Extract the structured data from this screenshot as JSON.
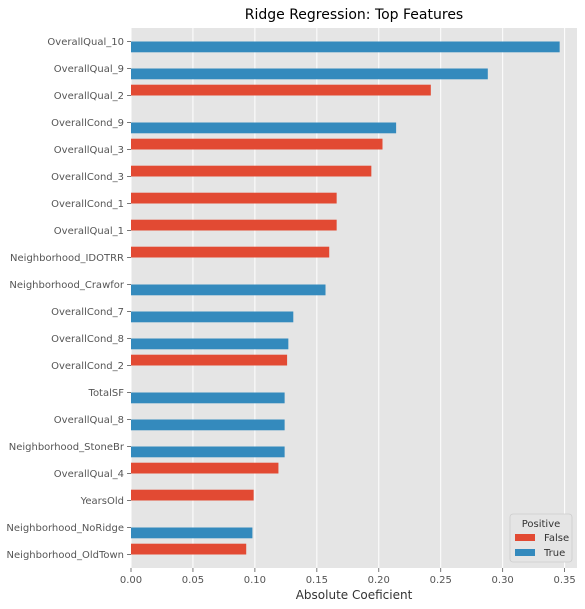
{
  "chart_data": {
    "type": "bar",
    "orientation": "horizontal",
    "title": "Ridge Regression: Top Features",
    "xlabel": "Absolute Coeficient",
    "ylabel": "",
    "xlim": [
      0,
      0.36
    ],
    "xticks": [
      0.0,
      0.05,
      0.1,
      0.15,
      0.2,
      0.25,
      0.3,
      0.35
    ],
    "xtick_labels": [
      "0.00",
      "0.05",
      "0.10",
      "0.15",
      "0.20",
      "0.25",
      "0.30",
      "0.35"
    ],
    "grid": true,
    "legend": {
      "title": "Positive",
      "placement": "bottom-right",
      "entries": [
        {
          "label": "False",
          "color": "#E24A33"
        },
        {
          "label": "True",
          "color": "#348ABD"
        }
      ]
    },
    "categories": [
      "OverallQual_10",
      "OverallQual_9",
      "OverallQual_2",
      "OverallCond_9",
      "OverallQual_3",
      "OverallCond_3",
      "OverallCond_1",
      "OverallQual_1",
      "Neighborhood_IDOTRR",
      "Neighborhood_Crawfor",
      "OverallCond_7",
      "OverallCond_8",
      "OverallCond_2",
      "TotalSF",
      "OverallQual_8",
      "Neighborhood_StoneBr",
      "OverallQual_4",
      "YearsOld",
      "Neighborhood_NoRidge",
      "Neighborhood_OldTown"
    ],
    "values": [
      0.346,
      0.288,
      0.242,
      0.214,
      0.203,
      0.194,
      0.166,
      0.166,
      0.16,
      0.157,
      0.131,
      0.127,
      0.126,
      0.124,
      0.124,
      0.124,
      0.119,
      0.099,
      0.098,
      0.093
    ],
    "positive": [
      true,
      true,
      false,
      true,
      false,
      false,
      false,
      false,
      false,
      true,
      true,
      true,
      false,
      true,
      true,
      true,
      false,
      false,
      true,
      false
    ],
    "colors": {
      "false": "#E24A33",
      "true": "#348ABD",
      "background": "#E5E5E5",
      "grid": "#FFFFFF"
    }
  }
}
